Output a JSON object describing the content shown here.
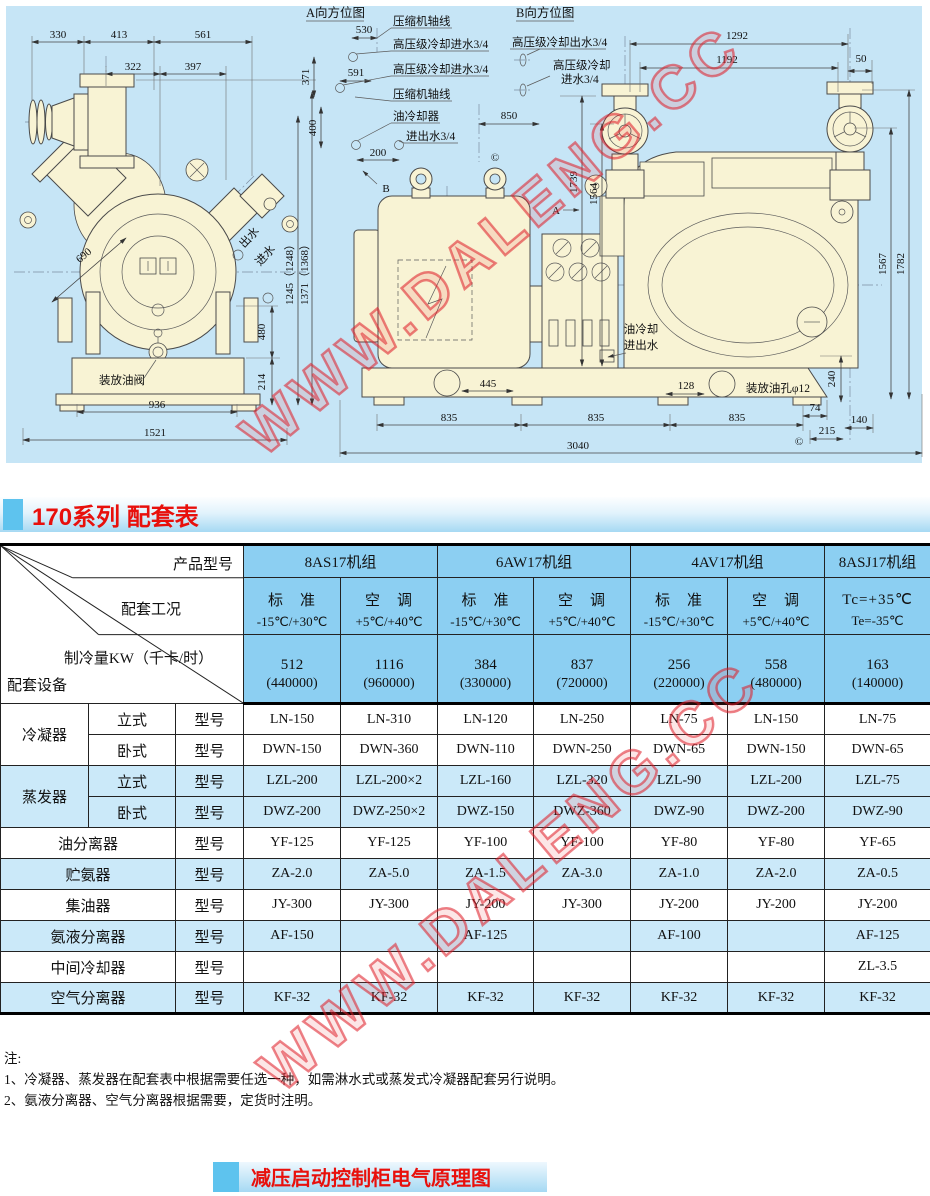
{
  "watermark": "WWW.DALENG.CC",
  "drawing": {
    "front": {
      "d330": "330",
      "d413": "413",
      "d561": "561",
      "d322": "322",
      "d397": "397",
      "d690": "690",
      "out": "出水",
      "in": "进水",
      "valve": "装放油阀",
      "d480": "480",
      "d214": "214",
      "d936": "936",
      "d1521": "1521",
      "d1245": "1245（1248）",
      "d1371": "1371（1368）"
    },
    "dirA": {
      "title": "A向方位图",
      "d530": "530",
      "d371": "371",
      "d591": "591",
      "d400": "400",
      "d200": "200",
      "d850": "850",
      "axis1": "压缩机轴线",
      "inlet1": "高压级冷却进水3/4",
      "inlet2": "高压级冷却进水3/4",
      "axis2": "压缩机轴线",
      "oilcooler": "油冷却器",
      "oilwater": "进出水3/4"
    },
    "dirB": {
      "title": "B向方位图",
      "outlet": "高压级冷却出水3/4",
      "inlet1": "高压级冷却",
      "inlet2": "进水3/4"
    },
    "side": {
      "d1292": "1292",
      "d1192": "1192",
      "d50": "50",
      "d1739": "1739",
      "d1564": "1564",
      "d1567": "1567",
      "d1782": "1782",
      "d445": "445",
      "d128": "128",
      "d835": "835",
      "d74": "74",
      "d240": "240",
      "d215": "215",
      "d140": "140",
      "d3040": "3040",
      "oil1": "油冷却",
      "oil2": "进出水",
      "drain": "装放油孔φ12",
      "a": "A",
      "b": "B",
      "copy": "©"
    }
  },
  "section": {
    "title": "170系列 配套表"
  },
  "table": {
    "corner": {
      "product": "产品型号",
      "condition": "配套工况",
      "capacity": "制冷量KW（千卡/时）",
      "equipment": "配套设备"
    },
    "type_label": "型号",
    "products": [
      {
        "label": "8AS17机组",
        "span": 2
      },
      {
        "label": "6AW17机组",
        "span": 2
      },
      {
        "label": "4AV17机组",
        "span": 2
      },
      {
        "label": "8ASJ17机组",
        "span": 1
      }
    ],
    "conditions": [
      [
        "标　准",
        "-15℃/+30℃"
      ],
      [
        "空　调",
        "+5℃/+40℃"
      ],
      [
        "标　准",
        "-15℃/+30℃"
      ],
      [
        "空　调",
        "+5℃/+40℃"
      ],
      [
        "标　准",
        "-15℃/+30℃"
      ],
      [
        "空　调",
        "+5℃/+40℃"
      ],
      [
        "Tc=+35℃",
        "Te=-35℃"
      ]
    ],
    "capacities": [
      [
        "512",
        "(440000)"
      ],
      [
        "1116",
        "(960000)"
      ],
      [
        "384",
        "(330000)"
      ],
      [
        "837",
        "(720000)"
      ],
      [
        "256",
        "(220000)"
      ],
      [
        "558",
        "(480000)"
      ],
      [
        "163",
        "(140000)"
      ]
    ],
    "rows": [
      {
        "group": "冷凝器",
        "sub": "立式",
        "shade": false,
        "values": [
          "LN-150",
          "LN-310",
          "LN-120",
          "LN-250",
          "LN-75",
          "LN-150",
          "LN-75"
        ]
      },
      {
        "group": "",
        "sub": "卧式",
        "shade": false,
        "values": [
          "DWN-150",
          "DWN-360",
          "DWN-110",
          "DWN-250",
          "DWN-65",
          "DWN-150",
          "DWN-65"
        ]
      },
      {
        "group": "蒸发器",
        "sub": "立式",
        "shade": true,
        "values": [
          "LZL-200",
          "LZL-200×2",
          "LZL-160",
          "LZL-320",
          "LZL-90",
          "LZL-200",
          "LZL-75"
        ]
      },
      {
        "group": "",
        "sub": "卧式",
        "shade": true,
        "values": [
          "DWZ-200",
          "DWZ-250×2",
          "DWZ-150",
          "DWZ-360",
          "DWZ-90",
          "DWZ-200",
          "DWZ-90"
        ]
      },
      {
        "device": "油分离器",
        "shade": false,
        "values": [
          "YF-125",
          "YF-125",
          "YF-100",
          "YF-100",
          "YF-80",
          "YF-80",
          "YF-65"
        ]
      },
      {
        "device": "贮氨器",
        "shade": true,
        "values": [
          "ZA-2.0",
          "ZA-5.0",
          "ZA-1.5",
          "ZA-3.0",
          "ZA-1.0",
          "ZA-2.0",
          "ZA-0.5"
        ]
      },
      {
        "device": "集油器",
        "shade": false,
        "values": [
          "JY-300",
          "JY-300",
          "JY-200",
          "JY-300",
          "JY-200",
          "JY-200",
          "JY-200"
        ]
      },
      {
        "device": "氨液分离器",
        "shade": true,
        "values": [
          "AF-150",
          "",
          "AF-125",
          "",
          "AF-100",
          "",
          "AF-125"
        ]
      },
      {
        "device": "中间冷却器",
        "shade": false,
        "values": [
          "",
          "",
          "",
          "",
          "",
          "",
          "ZL-3.5"
        ]
      },
      {
        "device": "空气分离器",
        "shade": true,
        "values": [
          "KF-32",
          "KF-32",
          "KF-32",
          "KF-32",
          "KF-32",
          "KF-32",
          "KF-32"
        ]
      }
    ]
  },
  "notes": {
    "label": "注:",
    "items": [
      "1、冷凝器、蒸发器在配套表中根据需要任选一种，如需淋水式或蒸发式冷凝器配套另行说明。",
      "2、氨液分离器、空气分离器根据需要，定货时注明。"
    ]
  },
  "footer": {
    "title": "减压启动控制柜电气原理图"
  },
  "colors": {
    "accent_red": "#e8100c",
    "banner_square": "#5ec3ee",
    "table_header": "#8ccff2",
    "row_shade": "#cbe9f9",
    "drawing_bg": "#c6e5f6",
    "machine_fill": "#f8f3d4"
  }
}
